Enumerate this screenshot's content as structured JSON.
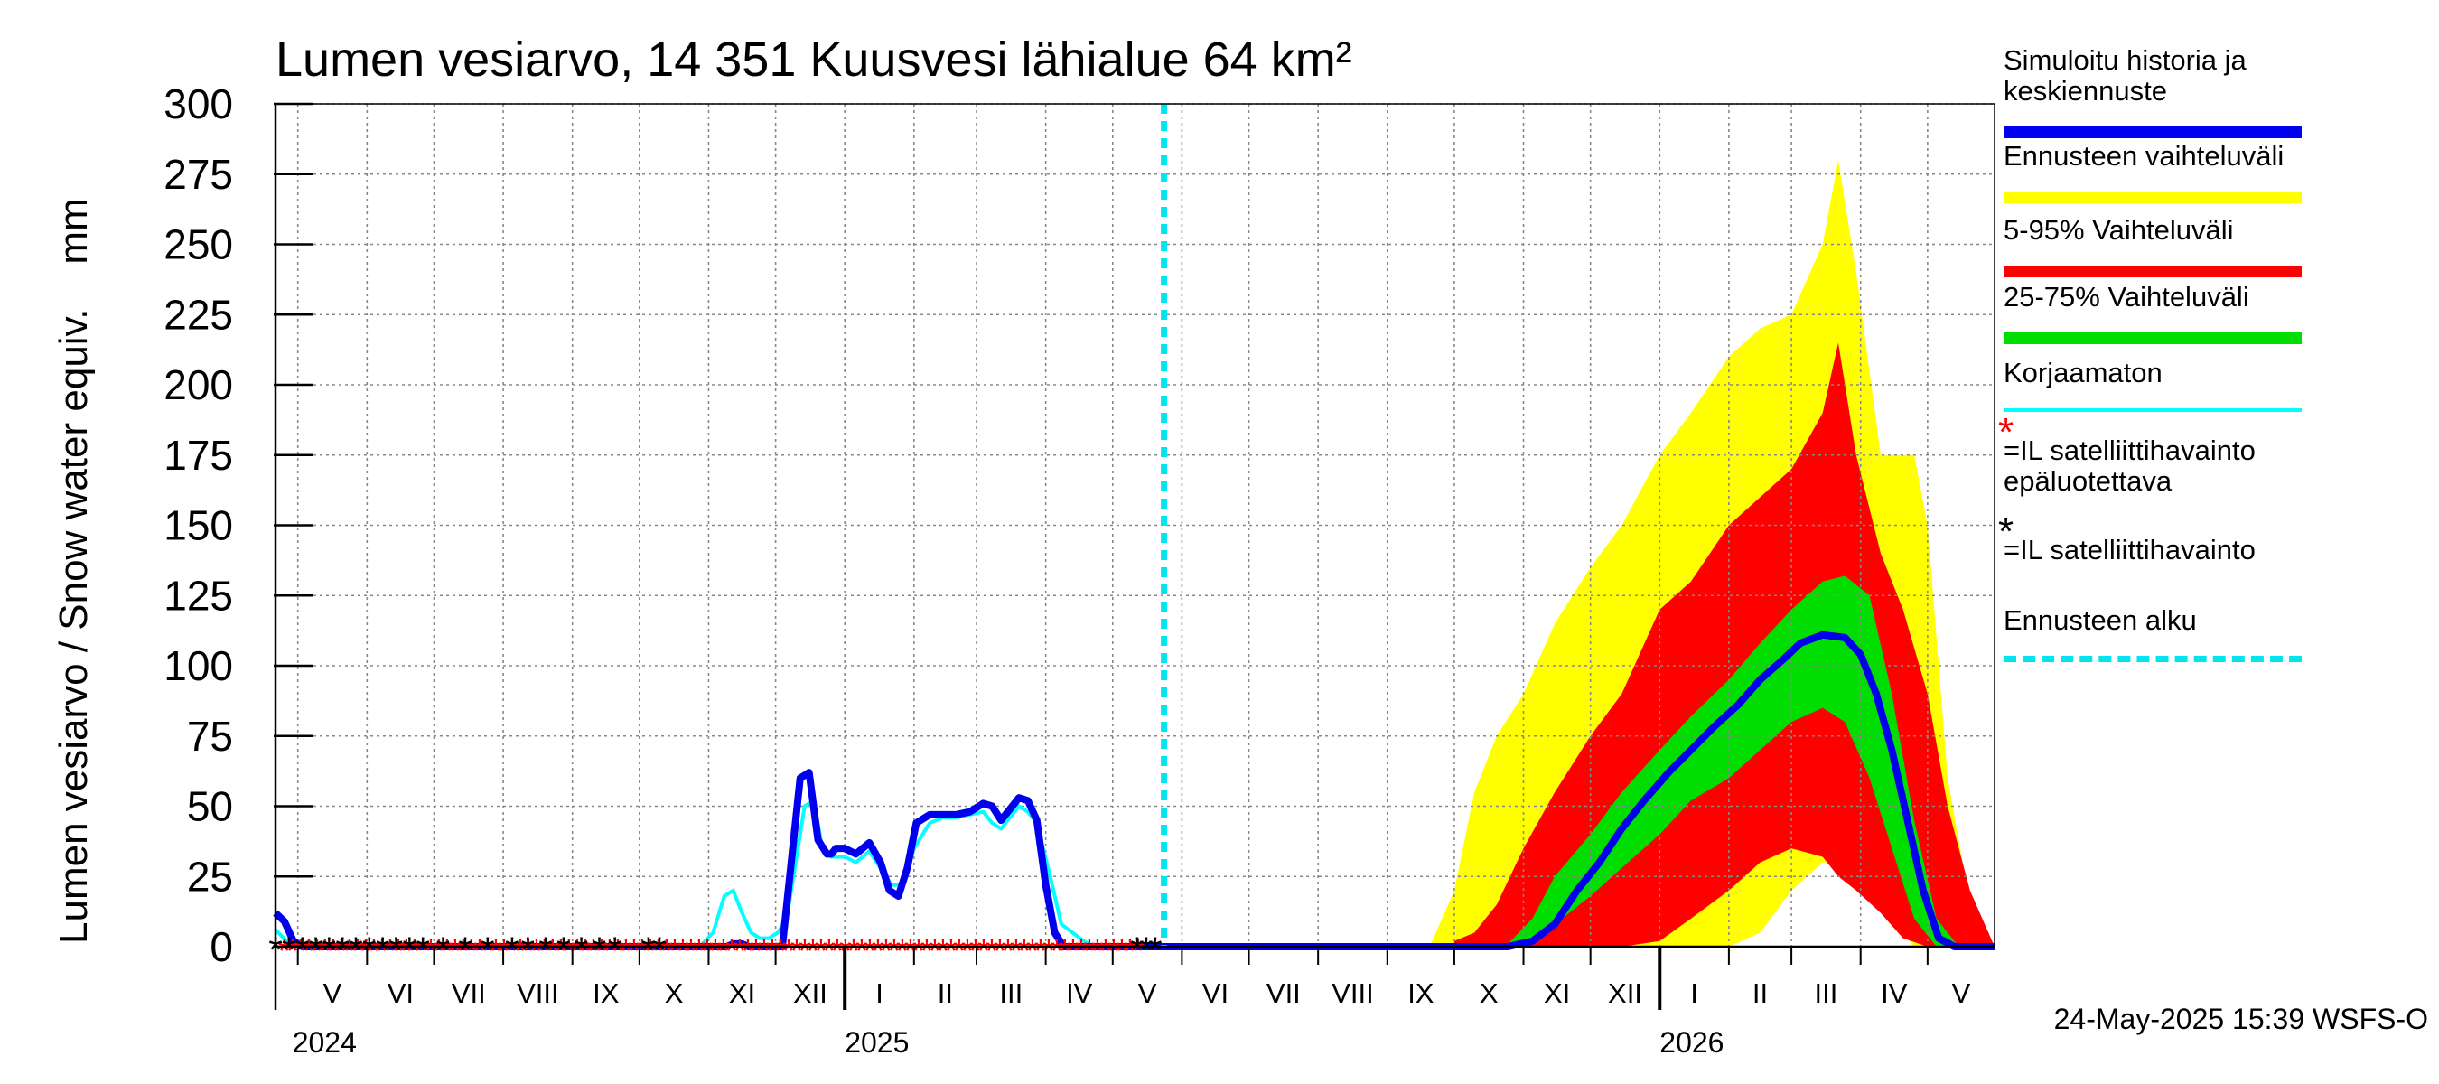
{
  "chart_data": {
    "type": "area",
    "title": "Lumen vesiarvo, 14 351 Kuusvesi lähialue 64 km²",
    "ylabel": "Lumen vesiarvo / Snow water equiv.    mm",
    "ylim": [
      0,
      300
    ],
    "yticks": [
      0,
      25,
      50,
      75,
      100,
      125,
      150,
      175,
      200,
      225,
      250,
      275,
      300
    ],
    "xlim": [
      "2024-04-21",
      "2026-05-31"
    ],
    "month_labels": [
      "V",
      "VI",
      "VII",
      "VIII",
      "IX",
      "X",
      "XI",
      "XII",
      "I",
      "II",
      "III",
      "IV",
      "V",
      "VI",
      "VII",
      "VIII",
      "IX",
      "X",
      "XI",
      "XII",
      "I",
      "II",
      "III",
      "IV",
      "V"
    ],
    "year_labels": [
      {
        "date": "2024-05-01",
        "label": "2024"
      },
      {
        "date": "2025-01-01",
        "label": "2025"
      },
      {
        "date": "2026-01-01",
        "label": "2026"
      }
    ],
    "forecast_start": "2025-05-24",
    "grid": true,
    "legend_position": "right",
    "series": [
      {
        "name": "Simuloitu historia ja\nkeskiennuste",
        "color": "#0000ee",
        "type": "line",
        "x": [
          "2024-04-21",
          "2024-04-25",
          "2024-04-29",
          "2024-05-03",
          "2024-10-25",
          "2024-11-01",
          "2024-11-05",
          "2024-11-09",
          "2024-11-12",
          "2024-11-16",
          "2024-11-19",
          "2024-11-22",
          "2024-11-26",
          "2024-11-30",
          "2024-12-04",
          "2024-12-08",
          "2024-12-12",
          "2024-12-16",
          "2024-12-20",
          "2024-12-24",
          "2024-12-26",
          "2024-12-28",
          "2025-01-01",
          "2025-01-06",
          "2025-01-12",
          "2025-01-17",
          "2025-01-21",
          "2025-01-25",
          "2025-01-29",
          "2025-02-02",
          "2025-02-08",
          "2025-02-14",
          "2025-02-20",
          "2025-02-26",
          "2025-03-04",
          "2025-03-08",
          "2025-03-12",
          "2025-03-16",
          "2025-03-20",
          "2025-03-24",
          "2025-03-28",
          "2025-04-01",
          "2025-04-05",
          "2025-04-09",
          "2025-04-13",
          "2025-04-17",
          "2025-04-21",
          "2025-05-24",
          "2025-10-15",
          "2025-10-25",
          "2025-11-05",
          "2025-11-15",
          "2025-11-25",
          "2025-12-05",
          "2025-12-15",
          "2025-12-25",
          "2026-01-05",
          "2026-01-15",
          "2026-01-25",
          "2026-02-05",
          "2026-02-15",
          "2026-02-25",
          "2026-03-05",
          "2026-03-15",
          "2026-03-25",
          "2026-04-01",
          "2026-04-08",
          "2026-04-15",
          "2026-04-22",
          "2026-04-29",
          "2026-05-06",
          "2026-05-13",
          "2026-05-31"
        ],
        "y": [
          12,
          9,
          2,
          0,
          0,
          0,
          0,
          0,
          1,
          1,
          0,
          0,
          0,
          0,
          0,
          30,
          60,
          62,
          38,
          33,
          33,
          35,
          35,
          33,
          37,
          30,
          20,
          18,
          28,
          44,
          47,
          47,
          47,
          48,
          51,
          50,
          45,
          49,
          53,
          52,
          45,
          22,
          5,
          0,
          0,
          0,
          0,
          0,
          0,
          0,
          2,
          8,
          20,
          30,
          42,
          52,
          62,
          70,
          78,
          86,
          95,
          102,
          108,
          111,
          110,
          104,
          90,
          70,
          45,
          20,
          3,
          0,
          0
        ]
      },
      {
        "name": "Ennusteen vaihteluväli",
        "color": "#ffff00",
        "type": "band",
        "x": [
          "2025-09-20",
          "2025-10-01",
          "2025-10-10",
          "2025-10-20",
          "2025-11-01",
          "2025-11-15",
          "2025-12-01",
          "2025-12-15",
          "2026-01-01",
          "2026-01-15",
          "2026-02-01",
          "2026-02-15",
          "2026-03-01",
          "2026-03-15",
          "2026-03-22",
          "2026-03-30",
          "2026-04-10",
          "2026-04-20",
          "2026-04-25",
          "2026-05-01",
          "2026-05-10",
          "2026-05-20",
          "2026-05-31"
        ],
        "low": [
          0,
          0,
          0,
          0,
          0,
          0,
          0,
          0,
          0,
          0,
          0,
          5,
          20,
          30,
          30,
          28,
          18,
          5,
          0,
          0,
          0,
          0,
          0
        ],
        "high": [
          0,
          20,
          55,
          75,
          90,
          115,
          135,
          150,
          175,
          190,
          210,
          220,
          225,
          250,
          280,
          240,
          175,
          175,
          175,
          150,
          60,
          15,
          0
        ]
      },
      {
        "name": "5-95% Vaihteluväli",
        "color": "#ff0000",
        "type": "band",
        "x": [
          "2025-10-01",
          "2025-10-10",
          "2025-10-20",
          "2025-11-01",
          "2025-11-15",
          "2025-12-01",
          "2025-12-15",
          "2026-01-01",
          "2026-01-15",
          "2026-02-01",
          "2026-02-15",
          "2026-03-01",
          "2026-03-15",
          "2026-03-22",
          "2026-03-30",
          "2026-04-10",
          "2026-04-20",
          "2026-05-01",
          "2026-05-10",
          "2026-05-20",
          "2026-05-31"
        ],
        "low": [
          0,
          0,
          0,
          0,
          0,
          0,
          0,
          2,
          10,
          20,
          30,
          35,
          32,
          25,
          20,
          12,
          3,
          0,
          0,
          0,
          0
        ],
        "high": [
          2,
          5,
          15,
          35,
          55,
          75,
          90,
          120,
          130,
          150,
          160,
          170,
          190,
          215,
          175,
          140,
          120,
          90,
          50,
          20,
          0
        ]
      },
      {
        "name": "25-75% Vaihteluväli",
        "color": "#00dd00",
        "type": "band",
        "x": [
          "2025-10-25",
          "2025-11-05",
          "2025-11-15",
          "2025-12-01",
          "2025-12-15",
          "2026-01-01",
          "2026-01-15",
          "2026-02-01",
          "2026-02-15",
          "2026-03-01",
          "2026-03-15",
          "2026-03-25",
          "2026-04-05",
          "2026-04-15",
          "2026-04-25",
          "2026-05-05",
          "2026-05-15",
          "2026-05-31"
        ],
        "low": [
          0,
          2,
          8,
          18,
          28,
          40,
          52,
          60,
          70,
          80,
          85,
          80,
          60,
          35,
          10,
          0,
          0,
          0
        ],
        "high": [
          1,
          10,
          25,
          40,
          55,
          70,
          82,
          95,
          108,
          120,
          130,
          132,
          125,
          90,
          45,
          10,
          0,
          0
        ]
      },
      {
        "name": "Korjaamaton",
        "color": "#00ffff",
        "type": "line",
        "x": [
          "2024-04-21",
          "2024-04-26",
          "2024-05-01",
          "2024-10-28",
          "2024-11-03",
          "2024-11-08",
          "2024-11-12",
          "2024-11-16",
          "2024-11-20",
          "2024-11-24",
          "2024-11-28",
          "2024-12-02",
          "2024-12-06",
          "2024-12-10",
          "2024-12-14",
          "2024-12-18",
          "2024-12-22",
          "2024-12-26",
          "2025-01-01",
          "2025-01-06",
          "2025-01-12",
          "2025-01-17",
          "2025-01-22",
          "2025-01-27",
          "2025-02-01",
          "2025-02-08",
          "2025-02-14",
          "2025-02-20",
          "2025-02-26",
          "2025-03-04",
          "2025-03-08",
          "2025-03-12",
          "2025-03-16",
          "2025-03-20",
          "2025-03-24",
          "2025-03-28",
          "2025-04-03",
          "2025-04-08",
          "2025-04-13",
          "2025-04-18",
          "2025-04-23",
          "2025-05-24"
        ],
        "y": [
          6,
          2,
          0,
          0,
          5,
          18,
          20,
          12,
          5,
          3,
          3,
          5,
          10,
          30,
          50,
          52,
          35,
          32,
          32,
          30,
          34,
          28,
          22,
          22,
          35,
          44,
          46,
          46,
          47,
          48,
          44,
          42,
          46,
          50,
          48,
          44,
          25,
          8,
          5,
          2,
          0,
          0
        ]
      },
      {
        "name": "=IL satelliittihavainto\nepäluotettava",
        "color": "#ff0000",
        "type": "scatter",
        "x_range": [
          "2024-04-25",
          "2025-05-15"
        ],
        "y": 0
      },
      {
        "name": "=IL satelliittihavainto",
        "color": "#000000",
        "type": "scatter",
        "x": [
          "2024-04-21",
          "2024-04-27",
          "2024-05-03",
          "2024-05-09",
          "2024-05-15",
          "2024-05-21",
          "2024-05-27",
          "2024-06-02",
          "2024-06-08",
          "2024-06-14",
          "2024-06-20",
          "2024-06-26",
          "2024-07-05",
          "2024-07-15",
          "2024-07-25",
          "2024-08-05",
          "2024-08-12",
          "2024-08-20",
          "2024-08-28",
          "2024-09-05",
          "2024-09-13",
          "2024-09-20",
          "2024-10-05",
          "2024-10-10",
          "2025-05-12",
          "2025-05-16",
          "2025-05-20"
        ],
        "y": [
          0,
          0,
          0,
          0,
          0,
          0,
          0,
          0,
          0,
          0,
          0,
          0,
          0,
          0,
          0,
          0,
          0,
          0,
          0,
          0,
          0,
          0,
          0,
          0,
          0,
          0,
          0
        ]
      },
      {
        "name": "Ennusteen alku",
        "color": "#00e5ee",
        "type": "vline",
        "x": "2025-05-24"
      }
    ]
  },
  "legend": [
    {
      "key": "sim",
      "label": "Simuloitu historia ja\nkeskiennuste",
      "color": "#0000ee"
    },
    {
      "key": "range",
      "label": "Ennusteen vaihteluväli",
      "color": "#ffff00"
    },
    {
      "key": "p595",
      "label": "5-95% Vaihteluväli",
      "color": "#ff0000"
    },
    {
      "key": "p2575",
      "label": "25-75% Vaihteluväli",
      "color": "#00dd00"
    },
    {
      "key": "raw",
      "label": "Korjaamaton",
      "color": "#00ffff"
    },
    {
      "key": "satbad",
      "label": "=IL satelliittihavainto\nepäluotettava",
      "star": "*",
      "star_color": "#ff0000"
    },
    {
      "key": "sat",
      "label": "=IL satelliittihavainto",
      "star": "*",
      "star_color": "#000000"
    },
    {
      "key": "fstart",
      "label": "Ennusteen alku",
      "color": "#00e5ee"
    }
  ],
  "footer": "24-May-2025 15:39 WSFS-O"
}
